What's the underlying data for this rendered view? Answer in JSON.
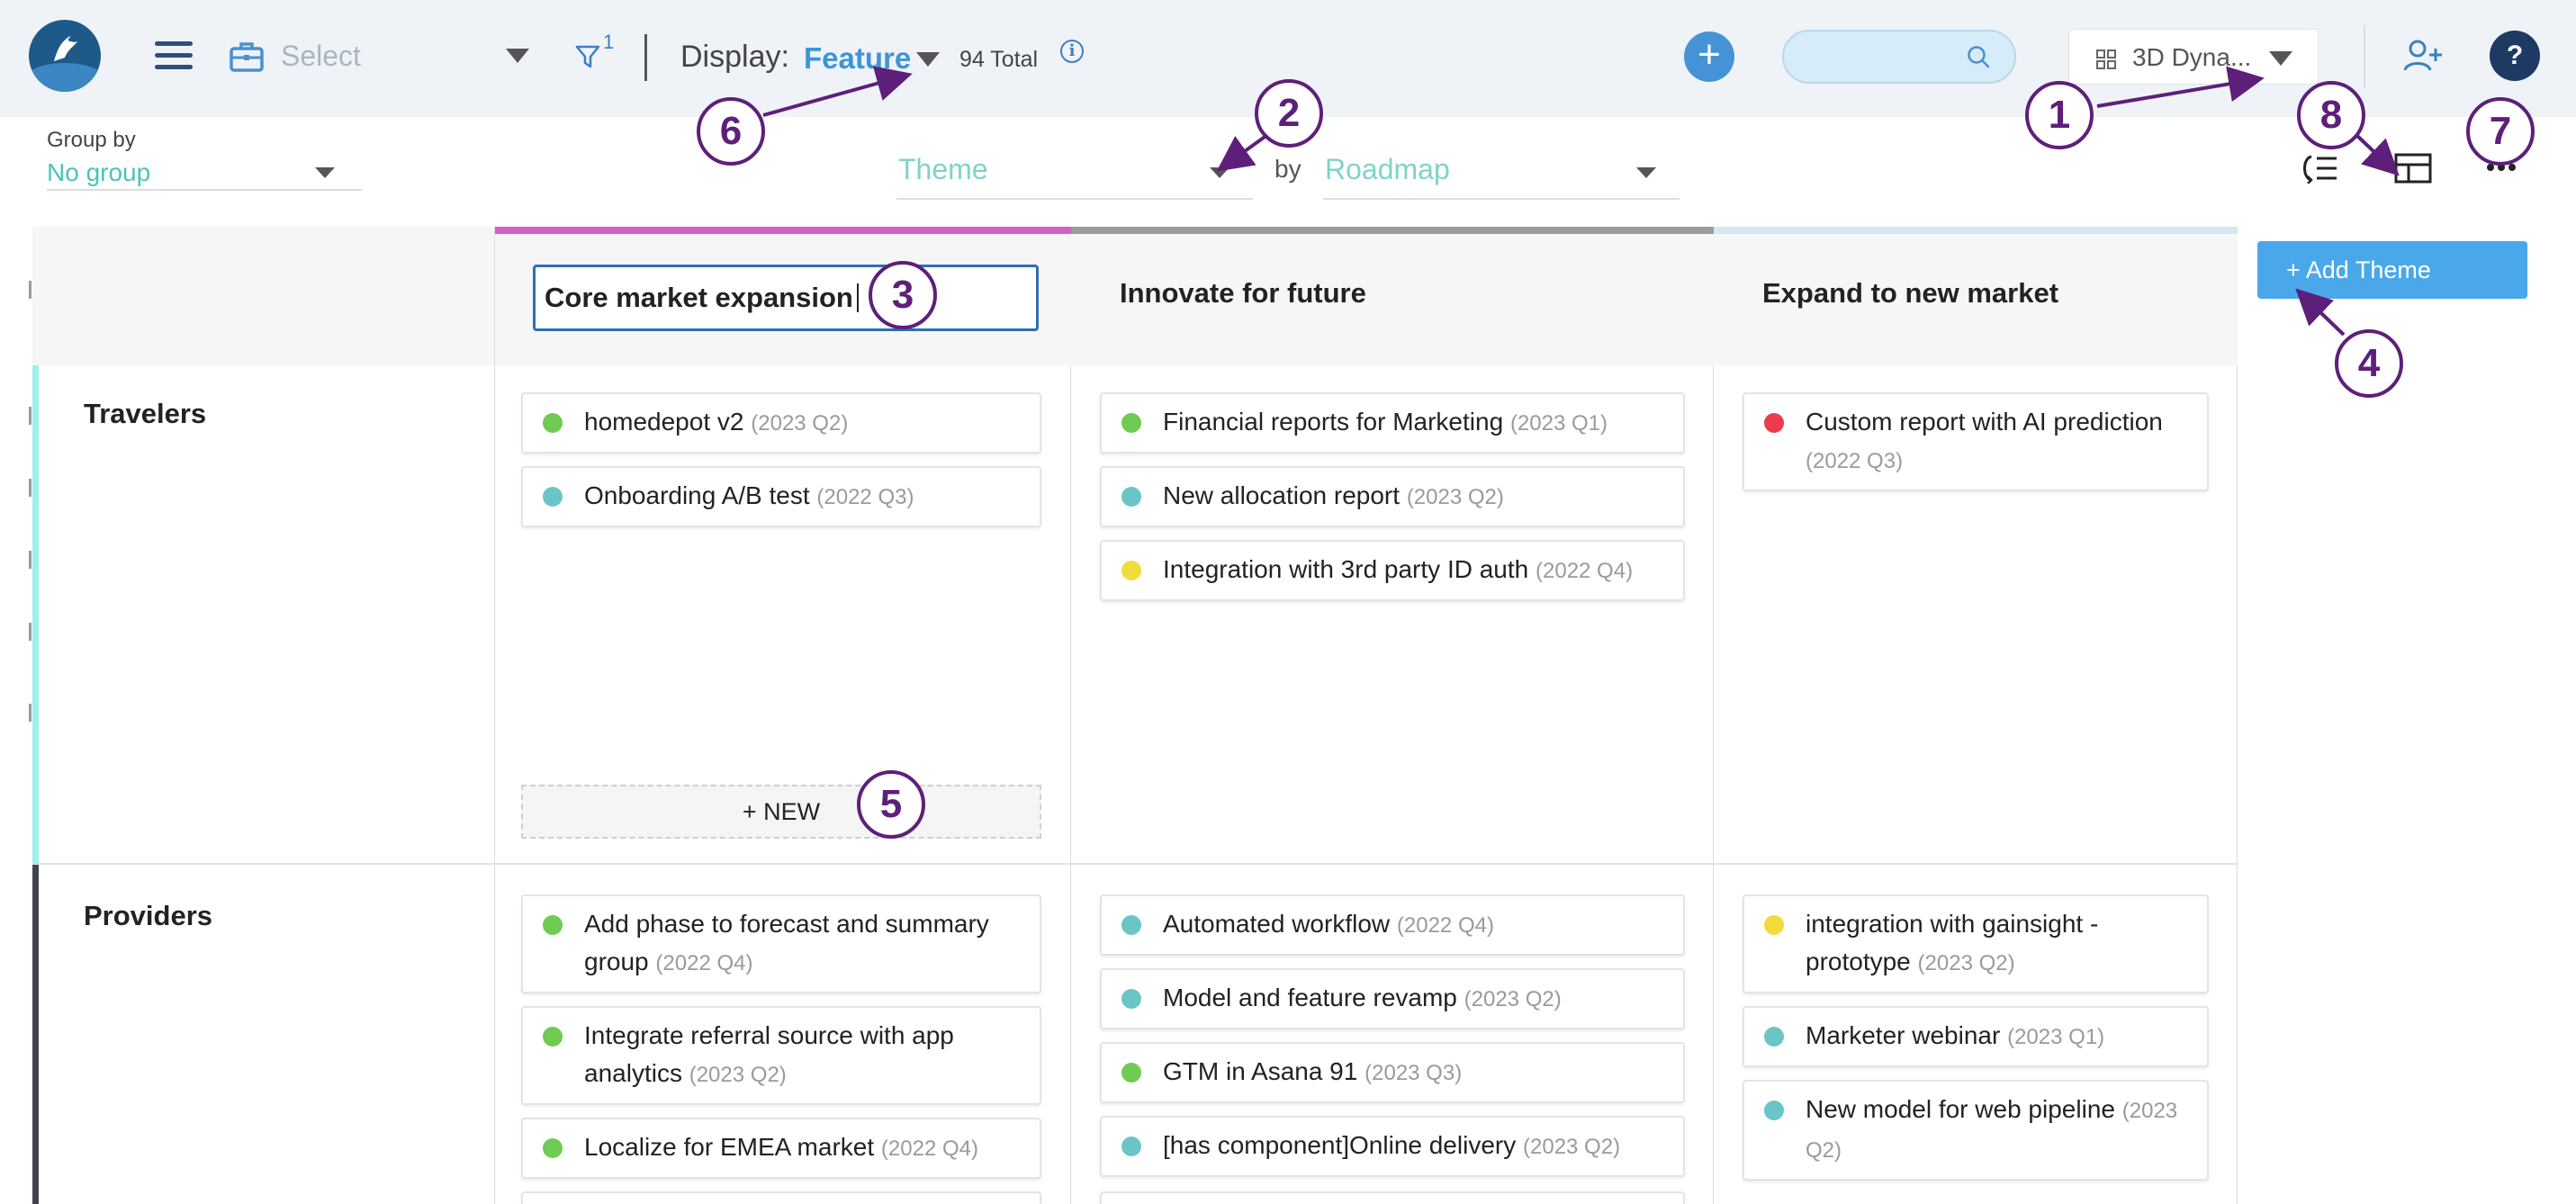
{
  "toolbar": {
    "select_label": "Select",
    "filter_count": "1",
    "display_label": "Display:",
    "display_value": "Feature",
    "total": "94 Total",
    "info_glyph": "i",
    "plus_glyph": "+",
    "search_placeholder": "",
    "workspace_name": "3D Dyna...",
    "help_glyph": "?"
  },
  "subbar": {
    "group_by_label": "Group by",
    "group_by_value": "No group",
    "column_field": "Theme",
    "by_label": "by",
    "lane_field": "Roadmap"
  },
  "columns": [
    {
      "title": "Core market expansion",
      "color": "#d65ec8",
      "editing": true
    },
    {
      "title": "Innovate for future",
      "color": "#9b9b9b"
    },
    {
      "title": "Expand to new market",
      "color": "#d4e8f3"
    }
  ],
  "lanes": [
    {
      "title": "Travelers",
      "color": "#9ef0e8",
      "cells": [
        [
          {
            "name": "homedepot v2",
            "quarter": "(2023 Q2)",
            "status": "green"
          },
          {
            "name": "Onboarding A/B test",
            "quarter": "(2022 Q3)",
            "status": "teal"
          }
        ],
        [
          {
            "name": "Financial reports for Marketing",
            "quarter": "(2023 Q1)",
            "status": "green"
          },
          {
            "name": "New allocation report",
            "quarter": "(2023 Q2)",
            "status": "teal"
          },
          {
            "name": "Integration with 3rd party ID auth",
            "quarter": "(2022 Q4)",
            "status": "yellow"
          }
        ],
        [
          {
            "name": "Custom report with AI prediction",
            "quarter": "(2022 Q3)",
            "status": "red"
          }
        ]
      ],
      "new_label": "+ NEW"
    },
    {
      "title": "Providers",
      "color": "#3f4450",
      "cells": [
        [
          {
            "name": "Add phase to forecast and summary group",
            "quarter": "(2022 Q4)",
            "status": "green"
          },
          {
            "name": "Integrate referral source with app analytics",
            "quarter": "(2023 Q2)",
            "status": "green"
          },
          {
            "name": "Localize for EMEA market",
            "quarter": "(2022 Q4)",
            "status": "green"
          }
        ],
        [
          {
            "name": "Automated workflow",
            "quarter": "(2022 Q4)",
            "status": "teal"
          },
          {
            "name": "Model and feature revamp",
            "quarter": "(2023 Q2)",
            "status": "teal"
          },
          {
            "name": "GTM in Asana 91",
            "quarter": "(2023 Q3)",
            "status": "green"
          },
          {
            "name": "[has component]Online delivery",
            "quarter": "(2023 Q2)",
            "status": "teal"
          }
        ],
        [
          {
            "name": "integration with gainsight - prototype",
            "quarter": "(2023 Q2)",
            "status": "yellow"
          },
          {
            "name": "Marketer webinar",
            "quarter": "(2023 Q1)",
            "status": "teal"
          },
          {
            "name": "New model for web pipeline",
            "quarter": "(2023 Q2)",
            "status": "teal"
          }
        ]
      ]
    }
  ],
  "status_colors": {
    "green": "#6fcb52",
    "teal": "#6ac6c6",
    "yellow": "#f2dc3c",
    "red": "#ec3a4f"
  },
  "add_theme_label": "+ Add Theme",
  "annotations": [
    "1",
    "2",
    "3",
    "4",
    "5",
    "6",
    "7",
    "8"
  ],
  "icons": [
    "logo",
    "hamburger-icon",
    "briefcase-icon",
    "filter-icon",
    "info-icon",
    "search-icon",
    "grid-icon",
    "add-user-icon",
    "help-icon",
    "collapse-list-icon",
    "table-layout-icon",
    "more-icon"
  ]
}
